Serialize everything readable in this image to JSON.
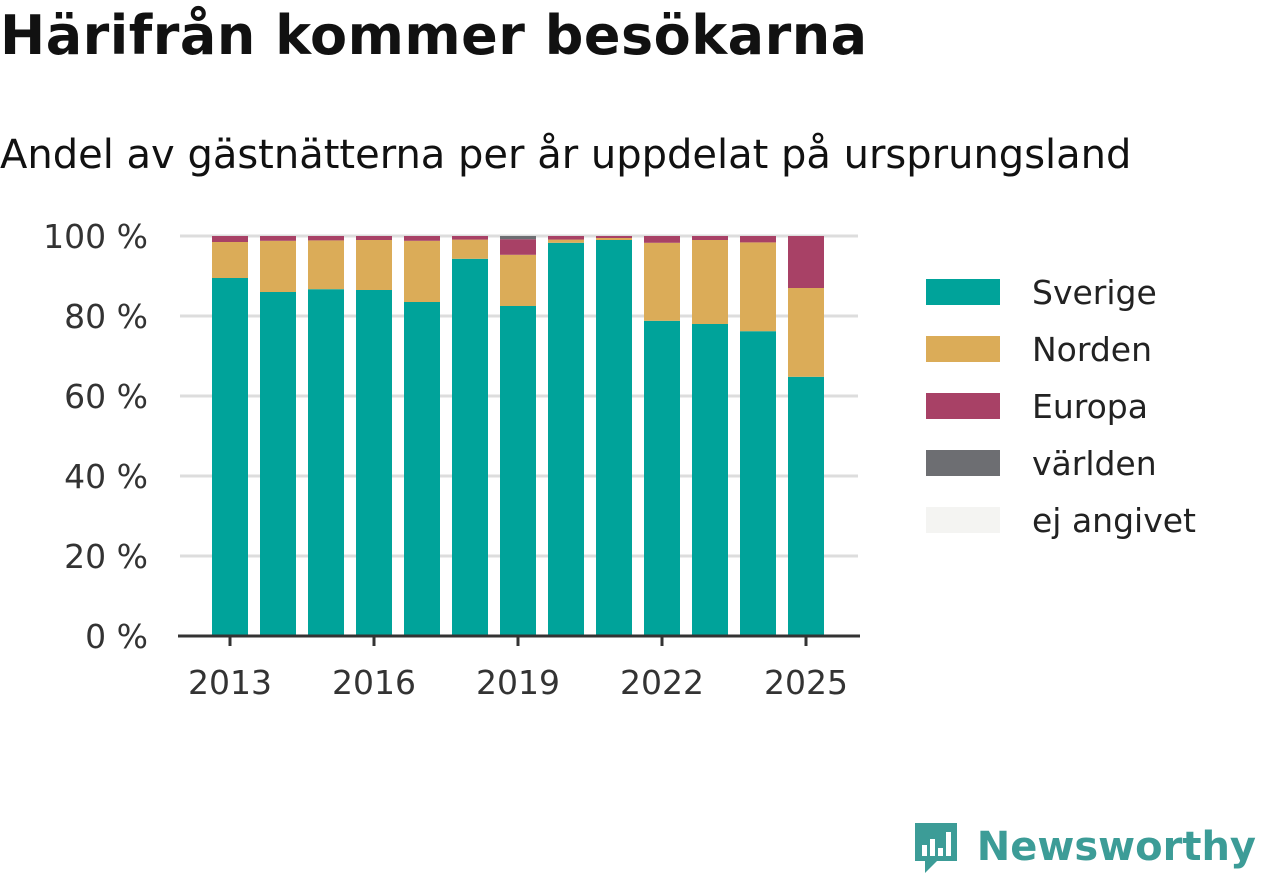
{
  "title": "Härifrån kommer besökarna",
  "subtitle": "Andel av gästnätterna per år uppdelat på ursprungsland",
  "brand": {
    "name": "Newsworthy"
  },
  "chart_data": {
    "type": "bar",
    "stacked": true,
    "categories": [
      "2013",
      "2014",
      "2015",
      "2016",
      "2017",
      "2018",
      "2019",
      "2020",
      "2021",
      "2022",
      "2023",
      "2024",
      "2025"
    ],
    "x_tick_labels": [
      "2013",
      "2016",
      "2019",
      "2022",
      "2025"
    ],
    "y_ticks": [
      0,
      20,
      40,
      60,
      80,
      100
    ],
    "y_tick_labels": [
      "0 %",
      "20 %",
      "40 %",
      "60 %",
      "80 %",
      "100 %"
    ],
    "ylim": [
      0,
      100
    ],
    "grid": true,
    "legend_position": "right",
    "series": [
      {
        "name": "Sverige",
        "color": "#00a39a",
        "values": [
          89.5,
          86,
          86.7,
          86.5,
          83.5,
          94.3,
          82.5,
          98.3,
          99,
          78.8,
          78,
          76.2,
          64.8
        ]
      },
      {
        "name": "Norden",
        "color": "#dbac58",
        "values": [
          9,
          12.8,
          12.2,
          12.5,
          15.3,
          4.8,
          12.8,
          0.8,
          0.5,
          19.5,
          21,
          22.2,
          22.2
        ]
      },
      {
        "name": "Europa",
        "color": "#a84166",
        "values": [
          1.5,
          1.2,
          1.1,
          1,
          1.2,
          0.9,
          3.9,
          0.9,
          0.5,
          1.7,
          1,
          1.6,
          13
        ]
      },
      {
        "name": "världen",
        "color": "#6d6e72",
        "values": [
          0,
          0,
          0,
          0,
          0,
          0,
          0.8,
          0,
          0,
          0,
          0,
          0,
          0
        ]
      },
      {
        "name": "ej angivet",
        "color": "#f4f4f2",
        "values": [
          0,
          0,
          0,
          0,
          0,
          0,
          0,
          0,
          0,
          0,
          0,
          0,
          0
        ]
      }
    ]
  }
}
